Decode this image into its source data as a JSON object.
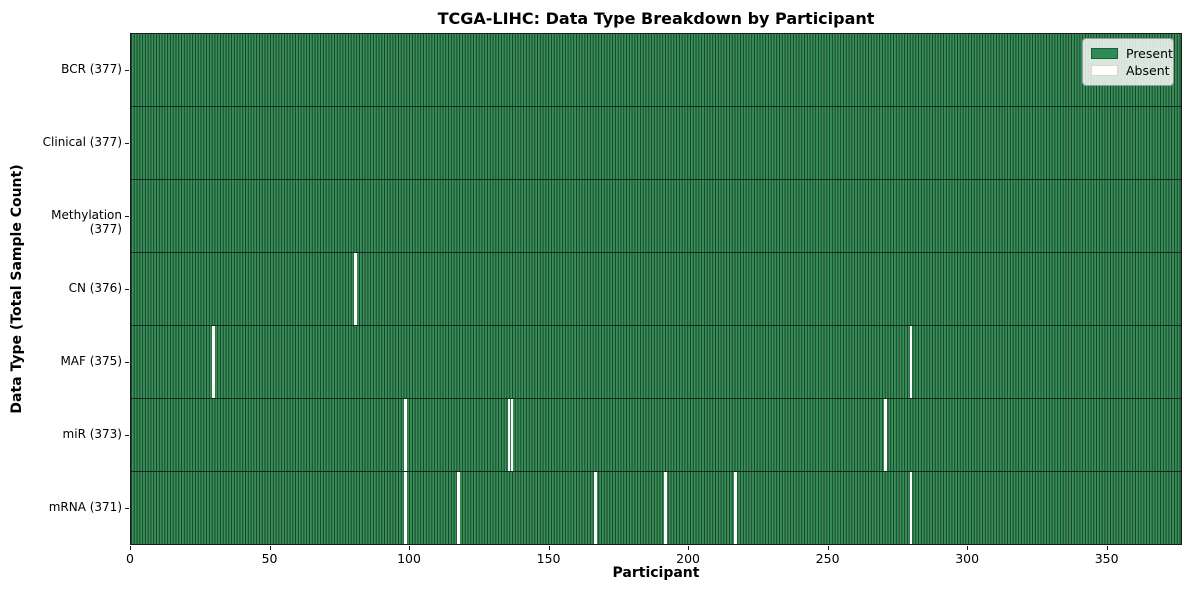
{
  "title": "TCGA-LIHC: Data Type Breakdown by Participant",
  "axes": {
    "xlabel": "Participant",
    "ylabel": "Data Type (Total Sample Count)",
    "x_ticks": [
      0,
      50,
      100,
      150,
      200,
      250,
      300,
      350
    ],
    "xlim": [
      0,
      377
    ]
  },
  "legend": {
    "items": [
      {
        "label": "Present",
        "color": "#2e8b57",
        "border": "#1d5c3a"
      },
      {
        "label": "Absent",
        "color": "#ffffff",
        "border": "#d8d8d8"
      }
    ]
  },
  "colors": {
    "present_fill": "#389058",
    "cell_edge": "#16402a",
    "absent_fill": "#ffffff",
    "row_separator": "#0f2b1b",
    "frame": "#1a1a1a"
  },
  "chart_data": {
    "type": "heatmap",
    "title": "TCGA-LIHC: Data Type Breakdown by Participant",
    "xlabel": "Participant",
    "ylabel": "Data Type (Total Sample Count)",
    "x_range": [
      0,
      377
    ],
    "n_participants": 377,
    "x_tick_labels": [
      "0",
      "50",
      "100",
      "150",
      "200",
      "250",
      "300",
      "350"
    ],
    "legend_position": "upper right",
    "legend_entries": [
      "Present",
      "Absent"
    ],
    "rows": [
      {
        "label": "BCR (377)",
        "present_count": 377,
        "absent_participants": []
      },
      {
        "label": "Clinical (377)",
        "present_count": 377,
        "absent_participants": []
      },
      {
        "label": "Methylation (377)",
        "present_count": 377,
        "absent_participants": []
      },
      {
        "label": "CN (376)",
        "present_count": 376,
        "absent_participants": [
          80
        ]
      },
      {
        "label": "MAF (375)",
        "present_count": 375,
        "absent_participants": [
          29,
          279
        ]
      },
      {
        "label": "miR (373)",
        "present_count": 373,
        "absent_participants": [
          98,
          135,
          136,
          270
        ]
      },
      {
        "label": "mRNA (371)",
        "present_count": 371,
        "absent_participants": [
          98,
          117,
          166,
          191,
          216,
          279
        ]
      }
    ]
  }
}
